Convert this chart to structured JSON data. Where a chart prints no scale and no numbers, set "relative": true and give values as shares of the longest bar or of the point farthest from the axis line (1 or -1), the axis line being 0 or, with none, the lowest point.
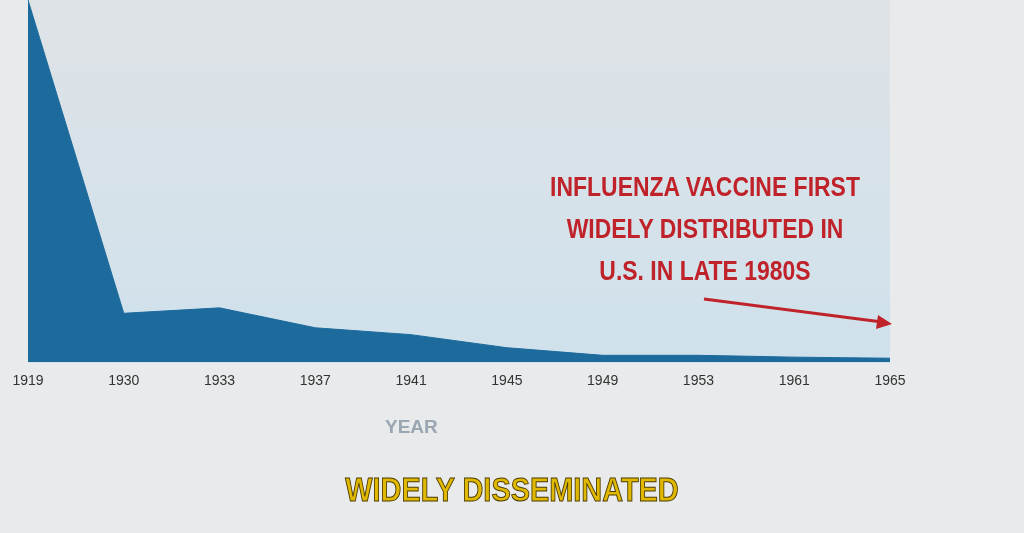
{
  "chart_data": {
    "type": "area",
    "relative": true,
    "xlabel": "YEAR",
    "color": "#1d6a9c",
    "categories": [
      "1919",
      "1930",
      "1933",
      "1937",
      "1941",
      "1945",
      "1949",
      "1953",
      "1961",
      "1965"
    ],
    "values": [
      1,
      0.135,
      0.15,
      0.095,
      0.076,
      0.04,
      0.019,
      0.019,
      0.014,
      0.011
    ],
    "annotations": [
      "INFLUENZA VACCINE FIRST\nWIDELY DISTRIBUTED IN\nU.S. IN LATE 1980S",
      "WIDELY DISSEMINATED"
    ]
  }
}
